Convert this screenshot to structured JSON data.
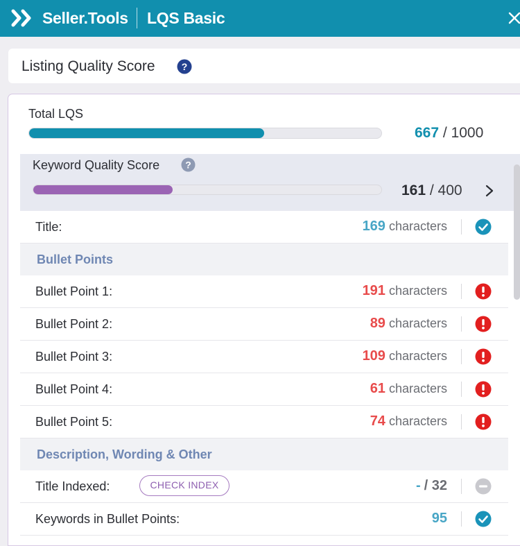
{
  "topbar": {
    "brand": "Seller.Tools",
    "tool": "LQS Basic"
  },
  "header": {
    "title": "Listing Quality Score"
  },
  "total": {
    "label": "Total LQS",
    "score": "667",
    "max": "/ 1000",
    "fraction": 0.667
  },
  "keyword": {
    "label": "Keyword Quality Score",
    "score": "161",
    "max": "/ 400",
    "fraction": 0.4
  },
  "rows": {
    "title": {
      "label": "Title:",
      "value": "169",
      "unit": "characters",
      "status": "check-circle-icon"
    },
    "bullets_header": "Bullet Points",
    "bp1": {
      "label": "Bullet Point 1:",
      "value": "191",
      "unit": "characters",
      "status": "alert-circle-icon"
    },
    "bp2": {
      "label": "Bullet Point 2:",
      "value": "89",
      "unit": "characters",
      "status": "alert-circle-icon"
    },
    "bp3": {
      "label": "Bullet Point 3:",
      "value": "109",
      "unit": "characters",
      "status": "alert-circle-icon"
    },
    "bp4": {
      "label": "Bullet Point 4:",
      "value": "61",
      "unit": "characters",
      "status": "alert-circle-icon"
    },
    "bp5": {
      "label": "Bullet Point 5:",
      "value": "74",
      "unit": "characters",
      "status": "alert-circle-icon"
    },
    "desc_header": "Description, Wording & Other",
    "title_indexed": {
      "label": "Title Indexed:",
      "button": "CHECK INDEX",
      "value": "-",
      "max": "/ 32",
      "status": "minus-circle-icon"
    },
    "keywords_bp": {
      "label": "Keywords in Bullet Points:",
      "value": "95",
      "status": "check-circle-icon"
    }
  },
  "colors": {
    "teal": "#118fae",
    "purple": "#9b64b4",
    "error": "#e21f1f",
    "success": "#1a93b9"
  }
}
